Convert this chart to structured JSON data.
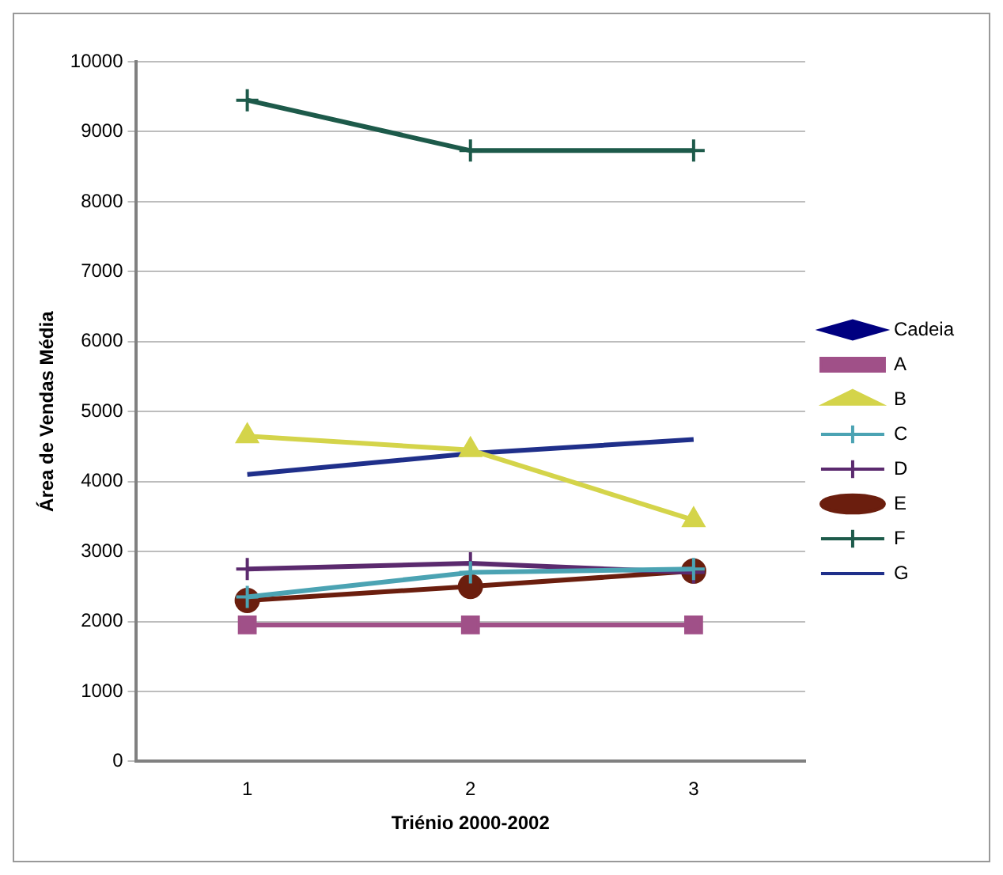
{
  "chart_data": {
    "type": "line",
    "xlabel": "Triénio 2000-2002",
    "ylabel": "Área de Vendas Média",
    "categories": [
      "1",
      "2",
      "3"
    ],
    "ylim": [
      0,
      10000
    ],
    "yticks": [
      0,
      1000,
      2000,
      3000,
      4000,
      5000,
      6000,
      7000,
      8000,
      9000,
      10000
    ],
    "grid": "y",
    "legend": "right",
    "line_style": "solid",
    "series": [
      {
        "name": "Cadeia",
        "color": "#000080",
        "marker": "diamond",
        "values": [
          null,
          null,
          null
        ]
      },
      {
        "name": "A",
        "color": "#a05088",
        "marker": "square",
        "values": [
          1950,
          1950,
          1950
        ]
      },
      {
        "name": "B",
        "color": "#d4d44a",
        "marker": "triangle",
        "values": [
          4650,
          4450,
          3450
        ]
      },
      {
        "name": "C",
        "color": "#4ba3b3",
        "marker": "cross",
        "values": [
          2350,
          2700,
          2750
        ]
      },
      {
        "name": "D",
        "color": "#5b2a6e",
        "marker": "cross",
        "values": [
          2750,
          2830,
          2700
        ]
      },
      {
        "name": "E",
        "color": "#6b1e0e",
        "marker": "circle",
        "values": [
          2300,
          2500,
          2720
        ]
      },
      {
        "name": "F",
        "color": "#1d5a4a",
        "marker": "cross",
        "values": [
          9450,
          8730,
          8730
        ]
      },
      {
        "name": "G",
        "color": "#1f2f8a",
        "marker": "none",
        "values": [
          4100,
          4400,
          4600
        ]
      }
    ]
  }
}
